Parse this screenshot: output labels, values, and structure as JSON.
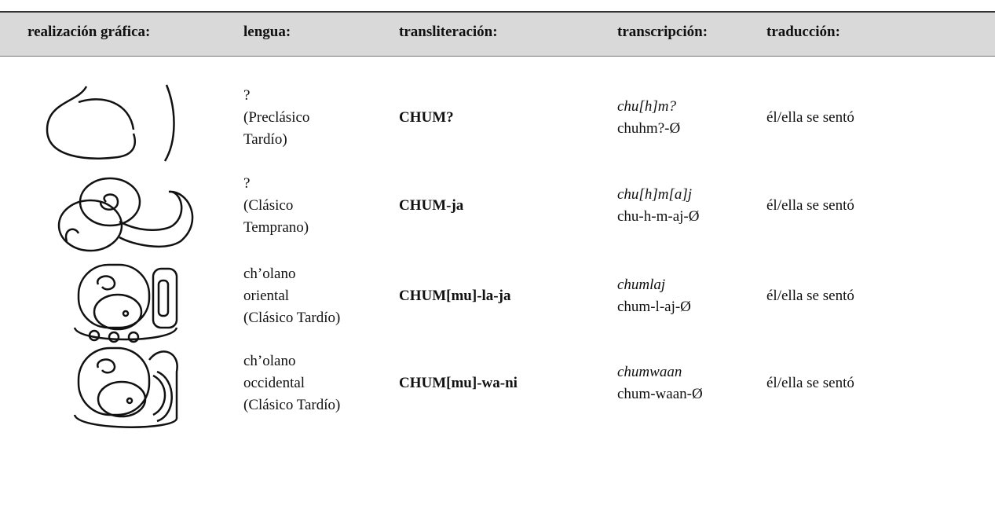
{
  "header": {
    "columns": [
      "realización gráfica:",
      "lengua:",
      "transliteración:",
      "transcripción:",
      "traducción:"
    ]
  },
  "rows": [
    {
      "language": [
        "?",
        "(Preclásico",
        "Tardío)"
      ],
      "transliteration": "CHUM?",
      "transcription": {
        "italic": "chu[h]m?",
        "plain": "chuhm?-Ø"
      },
      "translation": "él/ella se sentó"
    },
    {
      "language": [
        "?",
        "(Clásico",
        "Temprano)"
      ],
      "transliteration": "CHUM-ja",
      "transcription": {
        "italic": "chu[h]m[a]j",
        "plain": "chu-h-m-aj-Ø"
      },
      "translation": "él/ella se sentó"
    },
    {
      "language": [
        "ch’olano",
        "oriental",
        "(Clásico Tardío)"
      ],
      "transliteration": "CHUM[mu]-la-ja",
      "transcription": {
        "italic": "chumlaj",
        "plain": "chum-l-aj-Ø"
      },
      "translation": "él/ella se sentó"
    },
    {
      "language": [
        "ch’olano",
        "occidental",
        "(Clásico Tardío)"
      ],
      "transliteration": "CHUM[mu]-wa-ni",
      "transcription": {
        "italic": "chumwaan",
        "plain": "chum-waan-Ø"
      },
      "translation": "él/ella se sentó"
    }
  ]
}
